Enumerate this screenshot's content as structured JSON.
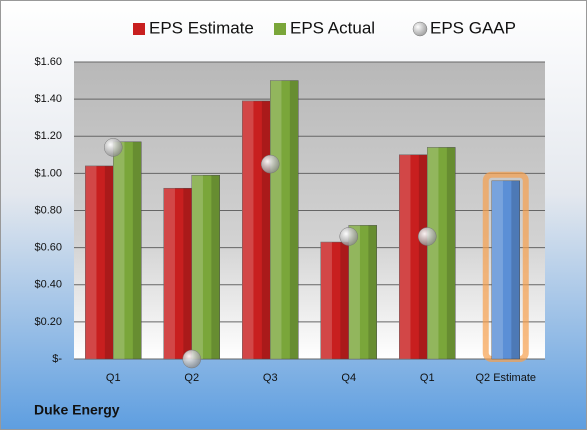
{
  "chart_data": {
    "type": "bar",
    "categories": [
      "Q1",
      "Q2",
      "Q3",
      "Q4",
      "Q1",
      "Q2 Estimate"
    ],
    "series": [
      {
        "name": "EPS Estimate",
        "color": "#c81f1f",
        "values": [
          1.04,
          0.92,
          1.39,
          0.63,
          1.1,
          0.96
        ],
        "colors": [
          "#c81f1f",
          "#c81f1f",
          "#c81f1f",
          "#c81f1f",
          "#c81f1f",
          "#5b8fd6"
        ],
        "highlight_glow": "#f6a04d"
      },
      {
        "name": "EPS Actual",
        "color": "#7aa63a",
        "values": [
          1.17,
          0.99,
          1.5,
          0.72,
          1.14,
          null
        ]
      },
      {
        "name": "EPS GAAP",
        "color": "#a8a8a8",
        "type": "scatter",
        "values": [
          1.14,
          0.0,
          1.05,
          0.66,
          0.66,
          null
        ]
      }
    ],
    "ylim": [
      0,
      1.6
    ],
    "yticks": [
      {
        "value": 0,
        "label": "$-"
      },
      {
        "value": 0.2,
        "label": "$0.20"
      },
      {
        "value": 0.4,
        "label": "$0.40"
      },
      {
        "value": 0.6,
        "label": "$0.60"
      },
      {
        "value": 0.8,
        "label": "$0.80"
      },
      {
        "value": 1.0,
        "label": "$1.00"
      },
      {
        "value": 1.2,
        "label": "$1.20"
      },
      {
        "value": 1.4,
        "label": "$1.40"
      },
      {
        "value": 1.6,
        "label": "$1.60"
      }
    ],
    "grid": true,
    "legend": "top",
    "footer": "Duke Energy"
  }
}
